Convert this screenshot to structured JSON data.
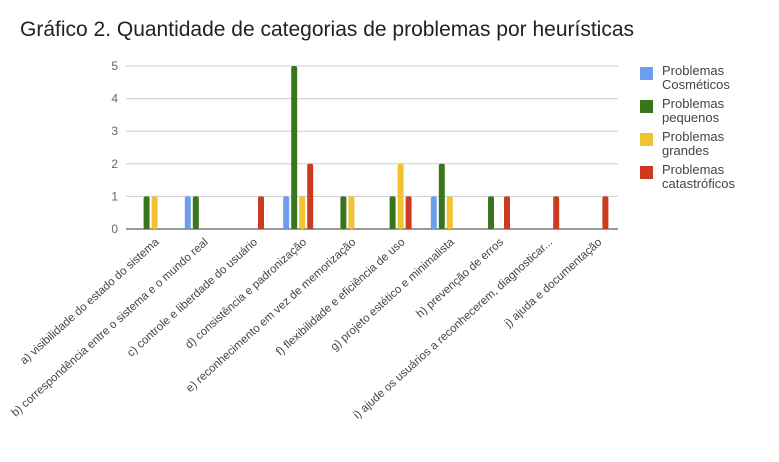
{
  "chart_data": {
    "type": "bar",
    "title": "Gráfico 2. Quantidade de categorias de problemas por heurísticas",
    "xlabel": "",
    "ylabel": "",
    "ylim": [
      0,
      5
    ],
    "yticks": [
      "0",
      "1",
      "2",
      "3",
      "4",
      "5"
    ],
    "grid": true,
    "legend_position": "right",
    "categories": [
      "a) visibilidade do estado do sistema",
      "b) correspondência entre o sistema e o mundo real",
      "c) controle e liberdade do usuário",
      "d) consistência e padronização",
      "e) reconhecimento em vez de memorização",
      "f) flexibilidade e eficiência de uso",
      "g) projeto estético e minimalista",
      "h) prevenção de erros",
      "i) ajude os usuários a reconhecerem, diagnosticar...",
      "j) ajuda e documentação"
    ],
    "series": [
      {
        "name": "Problemas Cosméticos",
        "color": "#6d9eeb",
        "values": [
          0,
          1,
          0,
          1,
          0,
          0,
          1,
          0,
          0,
          0
        ]
      },
      {
        "name": "Problemas pequenos",
        "color": "#38761d",
        "values": [
          1,
          1,
          0,
          5,
          1,
          1,
          2,
          1,
          0,
          0
        ]
      },
      {
        "name": "Problemas grandes",
        "color": "#f1c232",
        "values": [
          1,
          0,
          0,
          1,
          1,
          2,
          1,
          0,
          0,
          0
        ]
      },
      {
        "name": "Problemas catastróficos",
        "color": "#cc3a21",
        "values": [
          0,
          0,
          1,
          2,
          0,
          1,
          0,
          1,
          1,
          1
        ]
      }
    ]
  }
}
